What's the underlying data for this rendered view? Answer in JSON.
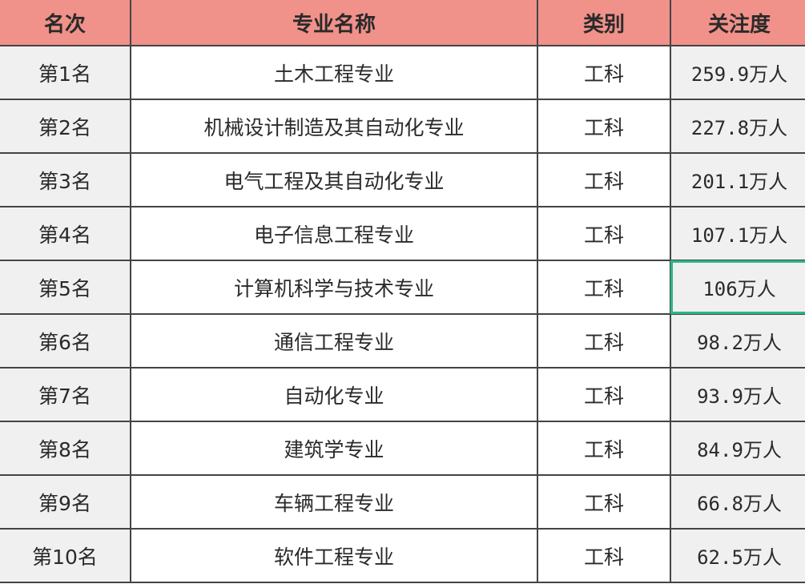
{
  "headers": [
    "名次",
    "专业名称",
    "类别",
    "关注度"
  ],
  "rows": [
    {
      "rank": "第1名",
      "major": "土木工程专业",
      "category": "工科",
      "attention": "259.9万人"
    },
    {
      "rank": "第2名",
      "major": "机械设计制造及其自动化专业",
      "category": "工科",
      "attention": "227.8万人"
    },
    {
      "rank": "第3名",
      "major": "电气工程及其自动化专业",
      "category": "工科",
      "attention": "201.1万人"
    },
    {
      "rank": "第4名",
      "major": "电子信息工程专业",
      "category": "工科",
      "attention": "107.1万人"
    },
    {
      "rank": "第5名",
      "major": "计算机科学与技术专业",
      "category": "工科",
      "attention": "106万人"
    },
    {
      "rank": "第6名",
      "major": "通信工程专业",
      "category": "工科",
      "attention": "98.2万人"
    },
    {
      "rank": "第7名",
      "major": "自动化专业",
      "category": "工科",
      "attention": "93.9万人"
    },
    {
      "rank": "第8名",
      "major": "建筑学专业",
      "category": "工科",
      "attention": "84.9万人"
    },
    {
      "rank": "第9名",
      "major": "车辆工程专业",
      "category": "工科",
      "attention": "66.8万人"
    },
    {
      "rank": "第10名",
      "major": "软件工程专业",
      "category": "工科",
      "attention": "62.5万人"
    }
  ],
  "selected_cell": {
    "row": 5,
    "column": "关注度"
  },
  "colors": {
    "header_bg": "#f0918a",
    "selection": "#2bb78a",
    "shaded_cell": "#f0f0f0"
  }
}
